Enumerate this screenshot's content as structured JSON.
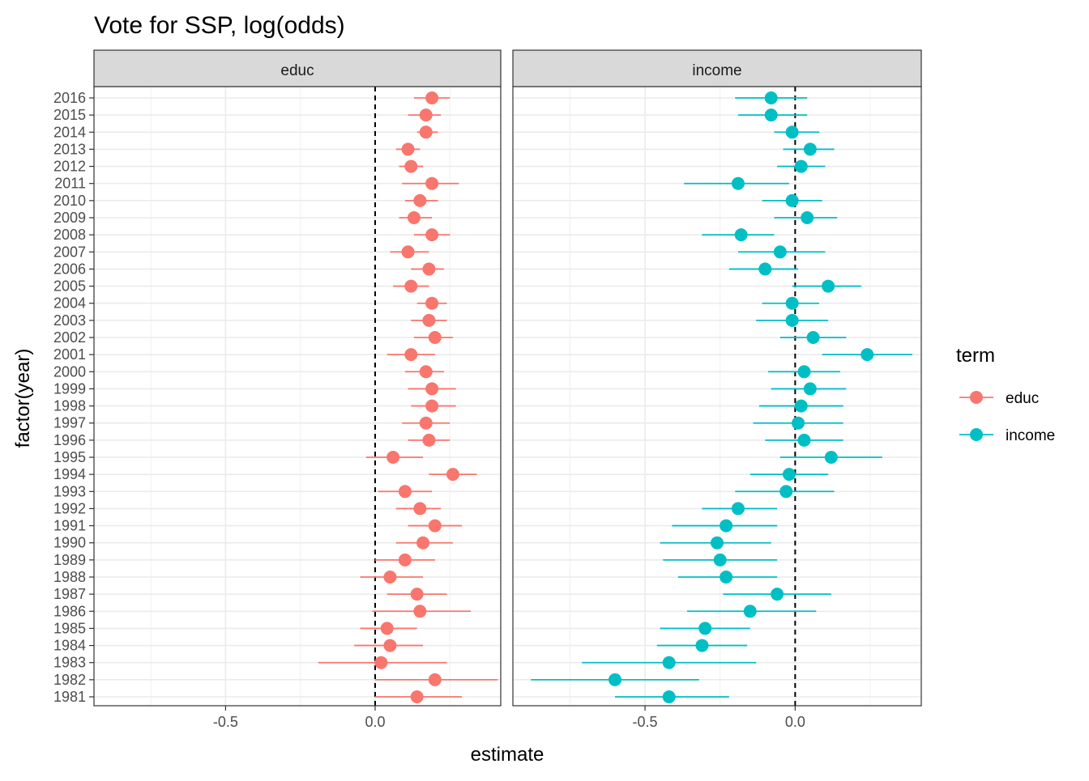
{
  "chart_data": {
    "type": "scatter",
    "subtype": "point-range coefficient plot, faceted",
    "title": "Vote for SSP, log(odds)",
    "xlabel": "estimate",
    "ylabel": "factor(year)",
    "xlim": [
      -0.94,
      0.42
    ],
    "x_ticks": [
      "-0.5",
      "0.0"
    ],
    "reference_line": 0,
    "grid": true,
    "legend": {
      "title": "term",
      "position": "right",
      "entries": [
        {
          "name": "educ",
          "color": "#F8766D"
        },
        {
          "name": "income",
          "color": "#00BFC4"
        }
      ]
    },
    "years": [
      "1981",
      "1982",
      "1983",
      "1984",
      "1985",
      "1986",
      "1987",
      "1988",
      "1989",
      "1990",
      "1991",
      "1992",
      "1993",
      "1994",
      "1995",
      "1996",
      "1997",
      "1998",
      "1999",
      "2000",
      "2001",
      "2002",
      "2003",
      "2004",
      "2005",
      "2006",
      "2007",
      "2008",
      "2009",
      "2010",
      "2011",
      "2012",
      "2013",
      "2014",
      "2015",
      "2016"
    ],
    "panels": [
      {
        "strip": "educ",
        "series": "educ",
        "color": "#F8766D",
        "estimate": [
          0.14,
          0.2,
          0.02,
          0.05,
          0.04,
          0.15,
          0.14,
          0.05,
          0.1,
          0.16,
          0.2,
          0.15,
          0.1,
          0.26,
          0.06,
          0.18,
          0.17,
          0.19,
          0.19,
          0.17,
          0.12,
          0.2,
          0.18,
          0.19,
          0.12,
          0.18,
          0.11,
          0.19,
          0.13,
          0.15,
          0.19,
          0.12,
          0.11,
          0.17,
          0.17,
          0.19
        ],
        "lower": [
          0.0,
          0.0,
          -0.19,
          -0.07,
          -0.05,
          -0.01,
          0.04,
          -0.05,
          0.0,
          0.07,
          0.11,
          0.07,
          0.01,
          0.18,
          -0.03,
          0.11,
          0.09,
          0.12,
          0.11,
          0.1,
          0.04,
          0.13,
          0.12,
          0.14,
          0.06,
          0.12,
          0.05,
          0.13,
          0.08,
          0.1,
          0.09,
          0.08,
          0.07,
          0.14,
          0.11,
          0.13
        ],
        "upper": [
          0.29,
          0.41,
          0.24,
          0.16,
          0.14,
          0.32,
          0.24,
          0.16,
          0.2,
          0.26,
          0.29,
          0.22,
          0.19,
          0.34,
          0.16,
          0.25,
          0.25,
          0.27,
          0.27,
          0.23,
          0.2,
          0.26,
          0.24,
          0.24,
          0.18,
          0.23,
          0.18,
          0.25,
          0.19,
          0.21,
          0.28,
          0.16,
          0.15,
          0.21,
          0.22,
          0.25
        ]
      },
      {
        "strip": "income",
        "series": "income",
        "color": "#00BFC4",
        "estimate": [
          -0.42,
          -0.6,
          -0.42,
          -0.31,
          -0.3,
          -0.15,
          -0.06,
          -0.23,
          -0.25,
          -0.26,
          -0.23,
          -0.19,
          -0.03,
          -0.02,
          0.12,
          0.03,
          0.01,
          0.02,
          0.05,
          0.03,
          0.24,
          0.06,
          -0.01,
          -0.01,
          0.11,
          -0.1,
          -0.05,
          -0.18,
          0.04,
          -0.01,
          -0.19,
          0.02,
          0.05,
          -0.01,
          -0.08,
          -0.08
        ],
        "lower": [
          -0.6,
          -0.88,
          -0.71,
          -0.46,
          -0.45,
          -0.36,
          -0.24,
          -0.39,
          -0.44,
          -0.45,
          -0.41,
          -0.31,
          -0.2,
          -0.15,
          -0.05,
          -0.1,
          -0.14,
          -0.12,
          -0.08,
          -0.09,
          0.09,
          -0.05,
          -0.13,
          -0.11,
          -0.01,
          -0.22,
          -0.19,
          -0.31,
          -0.07,
          -0.11,
          -0.37,
          -0.06,
          -0.04,
          -0.07,
          -0.19,
          -0.2
        ],
        "upper": [
          -0.22,
          -0.32,
          -0.13,
          -0.16,
          -0.15,
          0.07,
          0.12,
          -0.06,
          -0.06,
          -0.08,
          -0.06,
          -0.06,
          0.13,
          0.11,
          0.29,
          0.16,
          0.16,
          0.16,
          0.17,
          0.15,
          0.39,
          0.17,
          0.11,
          0.08,
          0.22,
          0.01,
          0.1,
          -0.07,
          0.14,
          0.09,
          -0.02,
          0.1,
          0.13,
          0.08,
          0.04,
          0.04
        ]
      }
    ]
  }
}
